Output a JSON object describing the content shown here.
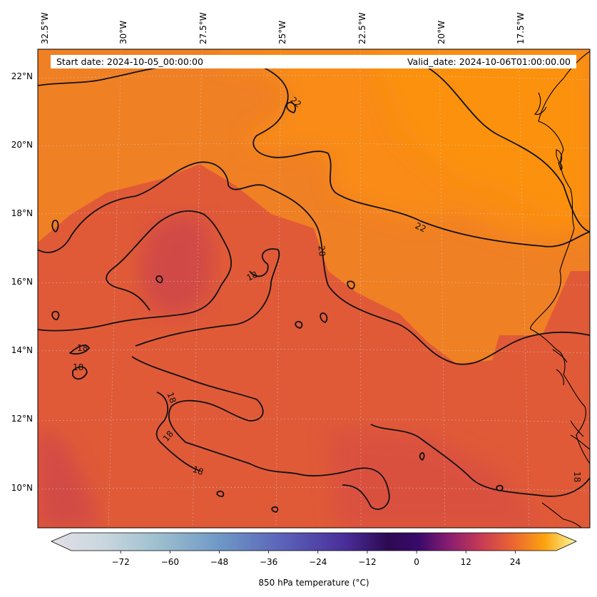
{
  "map": {
    "start_date": "Start date: 2024-10-05_00:00:00",
    "valid_date": "Valid_date: 2024-10-06T01:00:00.00",
    "lon_labels": [
      "32.5°W",
      "30°W",
      "27.5°W",
      "25°W",
      "22.5°W",
      "20°W",
      "17.5°W"
    ],
    "lat_labels": [
      "22°N",
      "20°N",
      "18°N",
      "16°N",
      "14°N",
      "12°N",
      "10°N"
    ],
    "contour_labels": [
      "22",
      "22",
      "20",
      "18",
      "18",
      "18",
      "18",
      "18",
      "18",
      "18"
    ],
    "colors": {
      "warm_field": "#e0573a",
      "cool_patch": "#cf4a48",
      "hot_field": "#f98a12",
      "contour": "#111111",
      "coastline": "#000000"
    }
  },
  "colorbar": {
    "label": "850 hPa temperature (°C)",
    "ticks": [
      "−72",
      "−60",
      "−48",
      "−36",
      "−24",
      "−12",
      "0",
      "12",
      "24"
    ],
    "tick_values": [
      -72,
      -60,
      -48,
      -36,
      -24,
      -12,
      0,
      12,
      24
    ],
    "range": [
      -84,
      34
    ]
  }
}
